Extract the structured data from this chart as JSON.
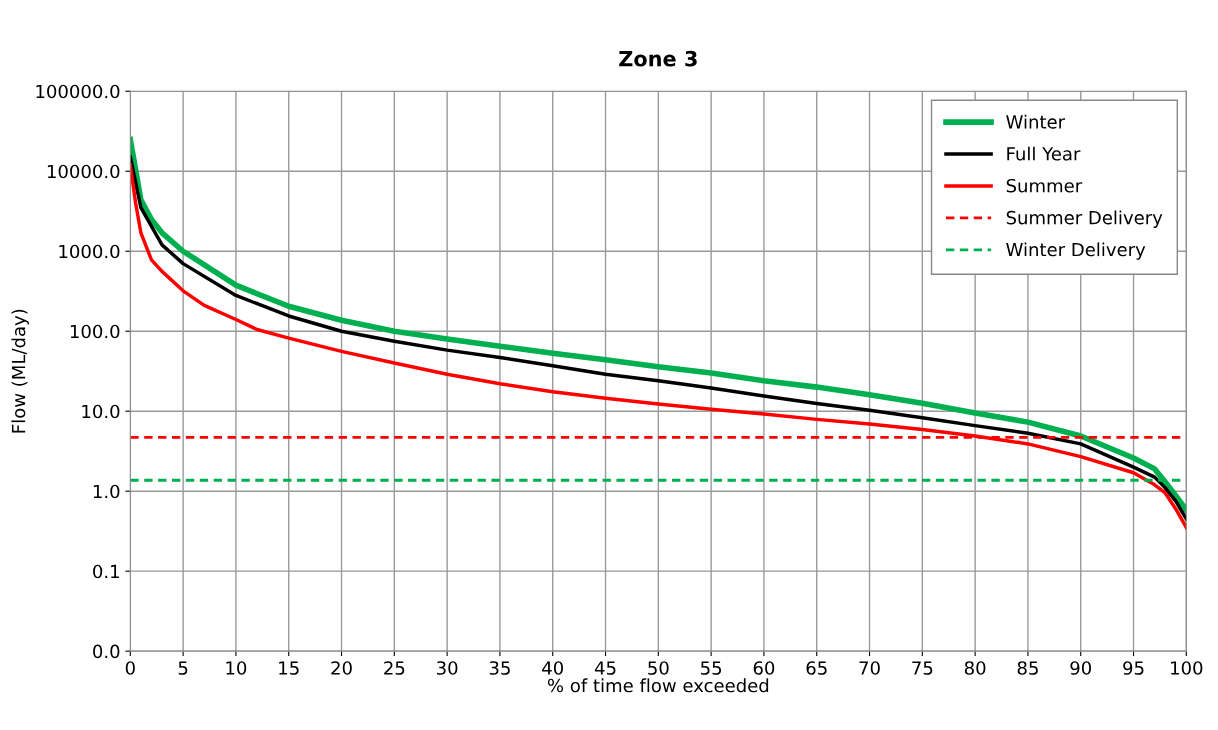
{
  "chart_data": {
    "type": "line",
    "title": "Zone 3",
    "xlabel": "% of time flow exceeded",
    "ylabel": "Flow (ML/day)",
    "log": "y",
    "grid": true,
    "legend": "top right",
    "marker": "none",
    "line_style": "solid",
    "xlim": [
      0,
      100
    ],
    "xticks": [
      0,
      5,
      10,
      15,
      20,
      25,
      30,
      35,
      40,
      45,
      50,
      55,
      60,
      65,
      70,
      75,
      80,
      85,
      90,
      95,
      100
    ],
    "ylim": [
      0.01,
      100000
    ],
    "yticks": [
      {
        "value": 0.01,
        "label": "0.0"
      },
      {
        "value": 0.1,
        "label": "0.1"
      },
      {
        "value": 1,
        "label": "1.0"
      },
      {
        "value": 10,
        "label": "10.0"
      },
      {
        "value": 100,
        "label": "100.0"
      },
      {
        "value": 1000,
        "label": "1000.0"
      },
      {
        "value": 10000,
        "label": "10000.0"
      },
      {
        "value": 100000,
        "label": "100000.0"
      }
    ],
    "series": [
      {
        "name": "Winter",
        "color": "#00b050",
        "x": [
          0,
          1,
          2,
          3,
          5,
          10,
          15,
          20,
          25,
          30,
          35,
          40,
          45,
          50,
          55,
          60,
          65,
          70,
          75,
          80,
          85,
          90,
          95,
          97,
          98,
          99,
          100
        ],
        "values": [
          25000,
          4400,
          2500,
          1700,
          1000,
          376,
          205,
          137,
          100,
          80,
          65,
          53,
          44,
          36,
          30,
          24,
          20,
          16,
          12.6,
          9.5,
          7.3,
          4.9,
          2.6,
          1.9,
          1.3,
          0.88,
          0.58
        ]
      },
      {
        "name": "Full Year",
        "color": "#000000",
        "x": [
          0,
          1,
          3,
          5,
          10,
          15,
          20,
          25,
          30,
          35,
          40,
          45,
          50,
          55,
          60,
          65,
          70,
          75,
          80,
          85,
          90,
          95,
          97,
          98,
          99,
          100
        ],
        "values": [
          15000,
          3500,
          1200,
          700,
          280,
          155,
          100,
          75,
          58,
          47,
          37,
          29,
          24,
          19.5,
          15.5,
          12.5,
          10.3,
          8.3,
          6.6,
          5.3,
          3.9,
          2.0,
          1.5,
          1.1,
          0.75,
          0.45
        ]
      },
      {
        "name": "Summer",
        "color": "#ff0000",
        "x": [
          0,
          0.5,
          1,
          2,
          3,
          5,
          7,
          10,
          12,
          15,
          20,
          25,
          30,
          35,
          40,
          45,
          50,
          55,
          60,
          65,
          70,
          75,
          80,
          85,
          90,
          95,
          97,
          98,
          99,
          100
        ],
        "values": [
          12000,
          4000,
          1700,
          780,
          560,
          320,
          210,
          140,
          105,
          82,
          56,
          40,
          29,
          22,
          17.5,
          14.5,
          12.3,
          10.6,
          9.2,
          7.9,
          6.9,
          5.9,
          4.9,
          3.9,
          2.7,
          1.7,
          1.2,
          0.95,
          0.6,
          0.35
        ]
      }
    ],
    "ref_lines": [
      {
        "axis": "y",
        "value": 4.7,
        "label": "Summer Delivery",
        "color": "#ff0000",
        "line_style": "dashed"
      },
      {
        "axis": "y",
        "value": 1.37,
        "label": "Winter Delivery",
        "color": "#00b050",
        "line_style": "dashed"
      }
    ]
  }
}
